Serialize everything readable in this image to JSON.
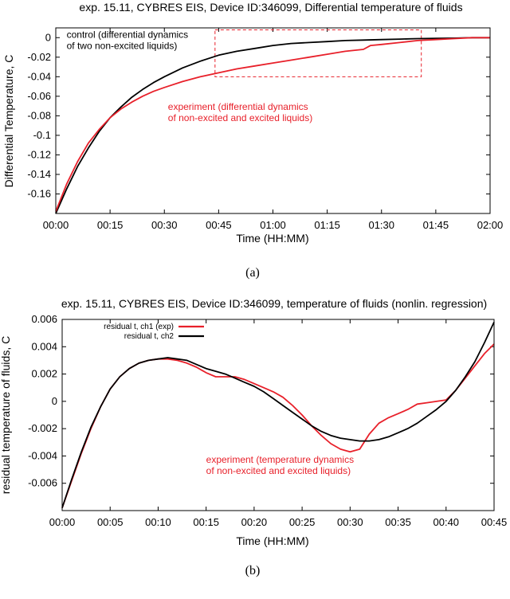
{
  "colors": {
    "experiment": "#e8202a",
    "control": "#000000",
    "box": "#e8202a"
  },
  "chart_data": [
    {
      "type": "line",
      "title": "exp. 15.11, CYBRES EIS, Device ID:346099, Differential temperature of fluids",
      "xlabel": "Time (HH:MM)",
      "ylabel": "Differential Temperature, C",
      "caption": "(a)",
      "xlim": [
        0,
        120
      ],
      "ylim": [
        -0.18,
        0.01
      ],
      "x_ticks": [
        {
          "v": 0,
          "label": "00:00"
        },
        {
          "v": 15,
          "label": "00:15"
        },
        {
          "v": 30,
          "label": "00:30"
        },
        {
          "v": 45,
          "label": "00:45"
        },
        {
          "v": 60,
          "label": "01:00"
        },
        {
          "v": 75,
          "label": "01:15"
        },
        {
          "v": 90,
          "label": "01:30"
        },
        {
          "v": 105,
          "label": "01:45"
        },
        {
          "v": 120,
          "label": "02:00"
        }
      ],
      "y_ticks": [
        {
          "v": 0,
          "label": "0"
        },
        {
          "v": -0.02,
          "label": "-0.02"
        },
        {
          "v": -0.04,
          "label": "-0.04"
        },
        {
          "v": -0.06,
          "label": "-0.06"
        },
        {
          "v": -0.08,
          "label": "-0.08"
        },
        {
          "v": -0.1,
          "label": "-0.1"
        },
        {
          "v": -0.12,
          "label": "-0.12"
        },
        {
          "v": -0.14,
          "label": "-0.14"
        },
        {
          "v": -0.16,
          "label": "-0.16"
        }
      ],
      "series": [
        {
          "key": "control",
          "x": [
            0,
            3,
            6,
            9,
            12,
            15,
            18,
            21,
            24,
            27,
            30,
            35,
            40,
            45,
            50,
            55,
            60,
            65,
            70,
            75,
            80,
            85,
            90,
            95,
            100,
            105,
            110,
            115,
            120
          ],
          "y": [
            -0.18,
            -0.155,
            -0.132,
            -0.113,
            -0.096,
            -0.082,
            -0.071,
            -0.061,
            -0.053,
            -0.046,
            -0.04,
            -0.031,
            -0.024,
            -0.018,
            -0.014,
            -0.011,
            -0.008,
            -0.006,
            -0.005,
            -0.004,
            -0.003,
            -0.0025,
            -0.002,
            -0.0015,
            -0.001,
            -0.0008,
            -0.0005,
            0,
            0
          ]
        },
        {
          "key": "experiment",
          "x": [
            0,
            3,
            6,
            9,
            12,
            15,
            18,
            21,
            24,
            27,
            30,
            35,
            40,
            45,
            50,
            55,
            60,
            65,
            70,
            75,
            80,
            85,
            87,
            90,
            95,
            100,
            105,
            110,
            115,
            120
          ],
          "y": [
            -0.178,
            -0.15,
            -0.127,
            -0.108,
            -0.094,
            -0.082,
            -0.073,
            -0.066,
            -0.06,
            -0.055,
            -0.051,
            -0.045,
            -0.04,
            -0.036,
            -0.032,
            -0.029,
            -0.026,
            -0.023,
            -0.02,
            -0.017,
            -0.014,
            -0.012,
            -0.008,
            -0.007,
            -0.005,
            -0.003,
            -0.002,
            -0.001,
            0,
            0
          ]
        }
      ],
      "annotations": [
        {
          "key": "control",
          "lines": [
            "control (differential dynamics",
            "of two non-excited liquids)"
          ],
          "at": [
            3,
            0.0
          ]
        },
        {
          "key": "experiment",
          "lines": [
            "experiment (differential dynamics",
            "of non-excited and excited liquids)"
          ],
          "at": [
            31,
            -0.074
          ]
        }
      ],
      "highlight_box": {
        "x": [
          44,
          101
        ],
        "y": [
          -0.04,
          0.008
        ]
      }
    },
    {
      "type": "line",
      "title": "exp.  15.11, CYBRES EIS, Device ID:346099, temperature of fluids (nonlin. regression)",
      "xlabel": "Time (HH:MM)",
      "ylabel": "residual temperature of fluids, C",
      "caption": "(b)",
      "xlim": [
        0,
        45
      ],
      "ylim": [
        -0.008,
        0.006
      ],
      "x_ticks": [
        {
          "v": 0,
          "label": "00:00"
        },
        {
          "v": 5,
          "label": "00:05"
        },
        {
          "v": 10,
          "label": "00:10"
        },
        {
          "v": 15,
          "label": "00:15"
        },
        {
          "v": 20,
          "label": "00:20"
        },
        {
          "v": 25,
          "label": "00:25"
        },
        {
          "v": 30,
          "label": "00:30"
        },
        {
          "v": 35,
          "label": "00:35"
        },
        {
          "v": 40,
          "label": "00:40"
        },
        {
          "v": 45,
          "label": "00:45"
        }
      ],
      "y_ticks": [
        {
          "v": 0.006,
          "label": "0.006"
        },
        {
          "v": 0.004,
          "label": "0.004"
        },
        {
          "v": 0.002,
          "label": "0.002"
        },
        {
          "v": 0,
          "label": "0"
        },
        {
          "v": -0.002,
          "label": "-0.002"
        },
        {
          "v": -0.004,
          "label": "-0.004"
        },
        {
          "v": -0.006,
          "label": "-0.006"
        }
      ],
      "legend": [
        {
          "key": "ch1",
          "label": "residual t, ch1 (exp)"
        },
        {
          "key": "ch2",
          "label": "residual t, ch2"
        }
      ],
      "series": [
        {
          "key": "ch1",
          "x": [
            0,
            1,
            2,
            3,
            4,
            5,
            6,
            7,
            8,
            9,
            10,
            11,
            12,
            13,
            14,
            15,
            16,
            17,
            18,
            19,
            20,
            21,
            22,
            23,
            24,
            25,
            26,
            27,
            28,
            29,
            30,
            31,
            32,
            33,
            34,
            35,
            36,
            37,
            38,
            39,
            40,
            41,
            42,
            43,
            44,
            45
          ],
          "y": [
            -0.0078,
            -0.0058,
            -0.0038,
            -0.002,
            -0.0004,
            0.0009,
            0.0018,
            0.0024,
            0.0028,
            0.003,
            0.0031,
            0.0031,
            0.003,
            0.0028,
            0.0025,
            0.0021,
            0.0018,
            0.0018,
            0.0018,
            0.0016,
            0.0013,
            0.001,
            0.0007,
            0.0003,
            -0.0003,
            -0.001,
            -0.0018,
            -0.0025,
            -0.0031,
            -0.0035,
            -0.0037,
            -0.0035,
            -0.0024,
            -0.0016,
            -0.0012,
            -0.0009,
            -0.0006,
            -0.0002,
            -0.0001,
            0,
            0.0001,
            0.0008,
            0.0017,
            0.0026,
            0.0035,
            0.0042
          ]
        },
        {
          "key": "ch2",
          "x": [
            0,
            1,
            2,
            3,
            4,
            5,
            6,
            7,
            8,
            9,
            10,
            11,
            12,
            13,
            14,
            15,
            16,
            17,
            18,
            19,
            20,
            21,
            22,
            23,
            24,
            25,
            26,
            27,
            28,
            29,
            30,
            31,
            32,
            33,
            34,
            35,
            36,
            37,
            38,
            39,
            40,
            41,
            42,
            43,
            44,
            45
          ],
          "y": [
            -0.0078,
            -0.0057,
            -0.0037,
            -0.0019,
            -0.0004,
            0.0009,
            0.0018,
            0.0024,
            0.0028,
            0.003,
            0.0031,
            0.0032,
            0.0031,
            0.003,
            0.0027,
            0.0024,
            0.0022,
            0.002,
            0.0017,
            0.0014,
            0.0011,
            0.0007,
            0.0002,
            -0.0003,
            -0.0008,
            -0.0013,
            -0.0018,
            -0.0022,
            -0.0025,
            -0.0027,
            -0.0028,
            -0.0029,
            -0.0029,
            -0.0028,
            -0.0026,
            -0.0023,
            -0.002,
            -0.0016,
            -0.0011,
            -0.0006,
            0.0,
            0.0008,
            0.0018,
            0.0029,
            0.0043,
            0.0058
          ]
        }
      ],
      "annotations": [
        {
          "key": "ch1",
          "lines": [
            "experiment (temperature dynamics",
            "of non-excited and excited liquids)"
          ],
          "at": [
            15,
            -0.0045
          ]
        }
      ]
    }
  ]
}
